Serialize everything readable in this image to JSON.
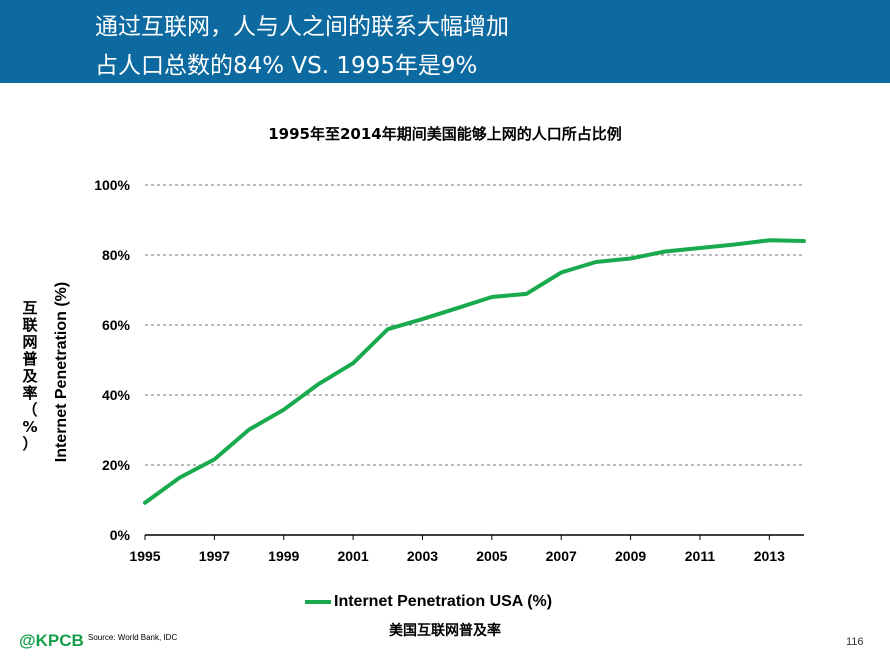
{
  "header": {
    "line1": "通过互联网，人与人之间的联系大幅增加",
    "line2": "占人口总数的84% VS. 1995年是9%",
    "background": "#0d6aa0"
  },
  "footer": {
    "logo": "@KPCB",
    "source": "Source: World Bank, IDC",
    "page_number": "116"
  },
  "chart_data": {
    "type": "line",
    "title": "1995年至2014年期间美国能够上网的人口所占比例",
    "ylabel": "Internet Penetration (%)",
    "ylabel_cn": "互联网普及率（%）",
    "xlabel": "",
    "x": [
      1995,
      1996,
      1997,
      1998,
      1999,
      2000,
      2001,
      2002,
      2003,
      2004,
      2005,
      2006,
      2007,
      2008,
      2009,
      2010,
      2011,
      2012,
      2013,
      2014
    ],
    "x_ticks": [
      "1995",
      "1997",
      "1999",
      "2001",
      "2003",
      "2005",
      "2007",
      "2009",
      "2011",
      "2013"
    ],
    "y_ticks": [
      "0%",
      "20%",
      "40%",
      "60%",
      "80%",
      "100%"
    ],
    "ylim": [
      0,
      100
    ],
    "xlim": [
      1995,
      2014
    ],
    "grid": "horizontal dashed",
    "legend_position": "bottom",
    "series": [
      {
        "name": "Internet Penetration USA (%)",
        "name_cn": "美国互联网普及率",
        "color": "#1aaa4e",
        "values": [
          9.2,
          16.4,
          21.6,
          30.1,
          35.8,
          43.1,
          49.1,
          58.8,
          61.7,
          64.8,
          68.0,
          68.9,
          75.0,
          78.0,
          79.0,
          81.0,
          82.0,
          83.0,
          84.2,
          84.0
        ]
      }
    ]
  }
}
